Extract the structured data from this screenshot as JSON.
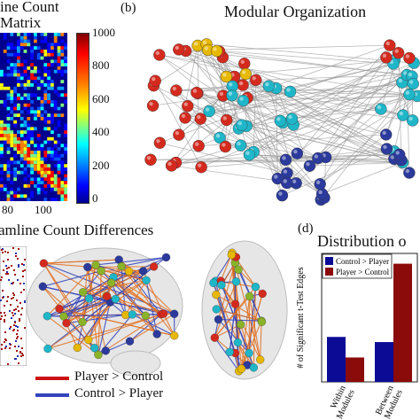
{
  "panel_a": {
    "title_line1": "ine Count",
    "title_line2": "Matrix",
    "colorbar_ticks": [
      "1000",
      "800",
      "600",
      "400",
      "200",
      "0"
    ],
    "x_ticks": [
      "80",
      "100"
    ]
  },
  "panel_b": {
    "label": "(b)",
    "title": "Modular Organization"
  },
  "panel_c": {
    "title": "amline Count Differences",
    "legend": [
      {
        "label": "Player > Control",
        "color": "#cc1111"
      },
      {
        "label": "Control > Player",
        "color": "#3344bb"
      }
    ]
  },
  "panel_d": {
    "label": "(d)",
    "title": "Distribution o",
    "chart_data": {
      "type": "bar",
      "categories": [
        "Within Modules",
        "Between Modules"
      ],
      "category_lines": [
        [
          "Within",
          "Modules"
        ],
        [
          "Between",
          "Modules"
        ]
      ],
      "series": [
        {
          "name": "Control > Player",
          "color": "#0b0b96",
          "values": [
            175,
            155
          ]
        },
        {
          "name": "Player > Control",
          "color": "#8b0a0a",
          "values": [
            95,
            460
          ]
        }
      ],
      "ylabel": "# of Significant t-Test Edges",
      "ylim": [
        0,
        500
      ],
      "legend_position": "top-left"
    }
  }
}
